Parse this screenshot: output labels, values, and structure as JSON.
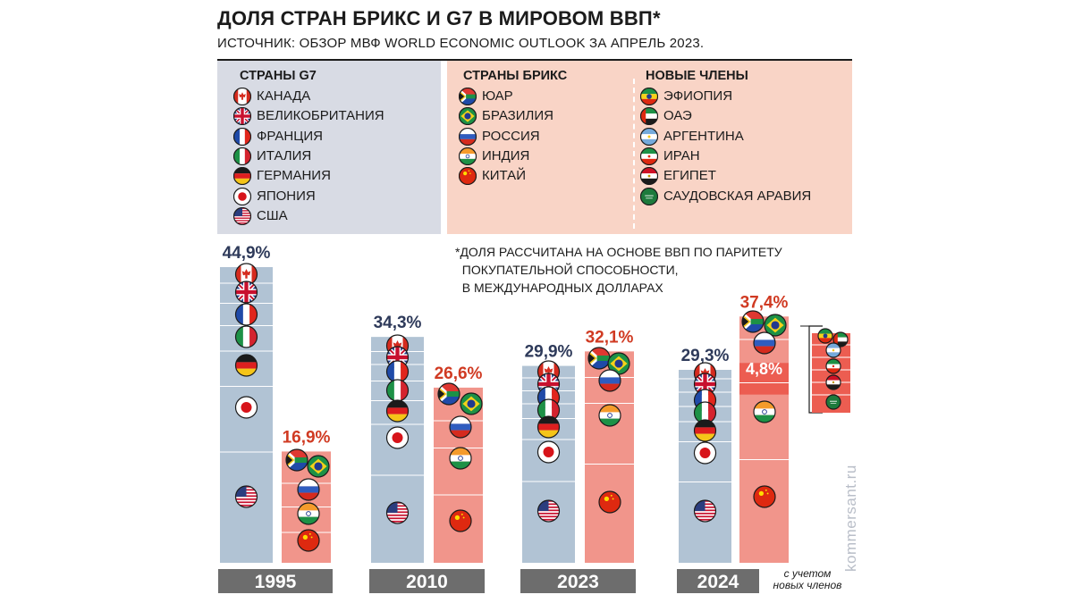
{
  "title": "ДОЛЯ СТРАН БРИКС И G7 В МИРОВОМ ВВП*",
  "subtitle": "ИСТОЧНИК: ОБЗОР МВФ WORLD ECONOMIC OUTLOOK ЗА АПРЕЛЬ 2023.",
  "legend": {
    "g7_heading": "СТРАНЫ G7",
    "g7": [
      {
        "label": "КАНАДА",
        "flag": "canada-flag-icon"
      },
      {
        "label": "ВЕЛИКОБРИТАНИЯ",
        "flag": "uk-flag-icon"
      },
      {
        "label": "ФРАНЦИЯ",
        "flag": "france-flag-icon"
      },
      {
        "label": "ИТАЛИЯ",
        "flag": "italy-flag-icon"
      },
      {
        "label": "ГЕРМАНИЯ",
        "flag": "germany-flag-icon"
      },
      {
        "label": "ЯПОНИЯ",
        "flag": "japan-flag-icon"
      },
      {
        "label": "США",
        "flag": "usa-flag-icon"
      }
    ],
    "brics_heading": "СТРАНЫ БРИКС",
    "brics": [
      {
        "label": "ЮАР",
        "flag": "south-africa-flag-icon"
      },
      {
        "label": "БРАЗИЛИЯ",
        "flag": "brazil-flag-icon"
      },
      {
        "label": "РОССИЯ",
        "flag": "russia-flag-icon"
      },
      {
        "label": "ИНДИЯ",
        "flag": "india-flag-icon"
      },
      {
        "label": "КИТАЙ",
        "flag": "china-flag-icon"
      }
    ],
    "new_heading": "НОВЫЕ ЧЛЕНЫ",
    "new_members": [
      {
        "label": "ЭФИОПИЯ",
        "flag": "ethiopia-flag-icon"
      },
      {
        "label": "ОАЭ",
        "flag": "uae-flag-icon"
      },
      {
        "label": "АРГЕНТИНА",
        "flag": "argentina-flag-icon"
      },
      {
        "label": "ИРАН",
        "flag": "iran-flag-icon"
      },
      {
        "label": "ЕГИПЕТ",
        "flag": "egypt-flag-icon"
      },
      {
        "label": "САУДОВСКАЯ АРАВИЯ",
        "flag": "saudi-arabia-flag-icon"
      }
    ]
  },
  "note": "*ДОЛЯ РАССЧИТАНА НА ОСНОВЕ ВВП ПО ПАРИТЕТУ\n  ПОКУПАТЕЛЬНОЙ СПОСОБНОСТИ,\n  В МЕЖДУНАРОДНЫХ ДОЛЛАРАХ",
  "year_note": "с учетом\nновых членов",
  "watermark": "kommersant.ru",
  "colors": {
    "g7": "#b1c3d4",
    "brics": "#f1958b",
    "new_members": "#ec5d51",
    "year_bar": "#6d6d6d",
    "g7_label": "#2e3a5a",
    "brics_label": "#d03a22"
  },
  "chart_data": {
    "type": "bar",
    "categories": [
      "1995",
      "2010",
      "2023",
      "2024"
    ],
    "ylim": [
      0,
      50
    ],
    "series": [
      {
        "name": "СТРАНЫ G7",
        "values": [
          44.9,
          34.3,
          29.9,
          29.3
        ],
        "labels": [
          "44,9%",
          "34,3%",
          "29,9%",
          "29,3%"
        ]
      },
      {
        "name": "СТРАНЫ БРИКС",
        "values": [
          16.9,
          26.6,
          32.1,
          37.4
        ],
        "labels": [
          "16,9%",
          "26,6%",
          "32,1%",
          "37,4%"
        ]
      }
    ],
    "new_members_share": {
      "category": "2024",
      "value": 4.8,
      "label": "4,8%"
    }
  }
}
